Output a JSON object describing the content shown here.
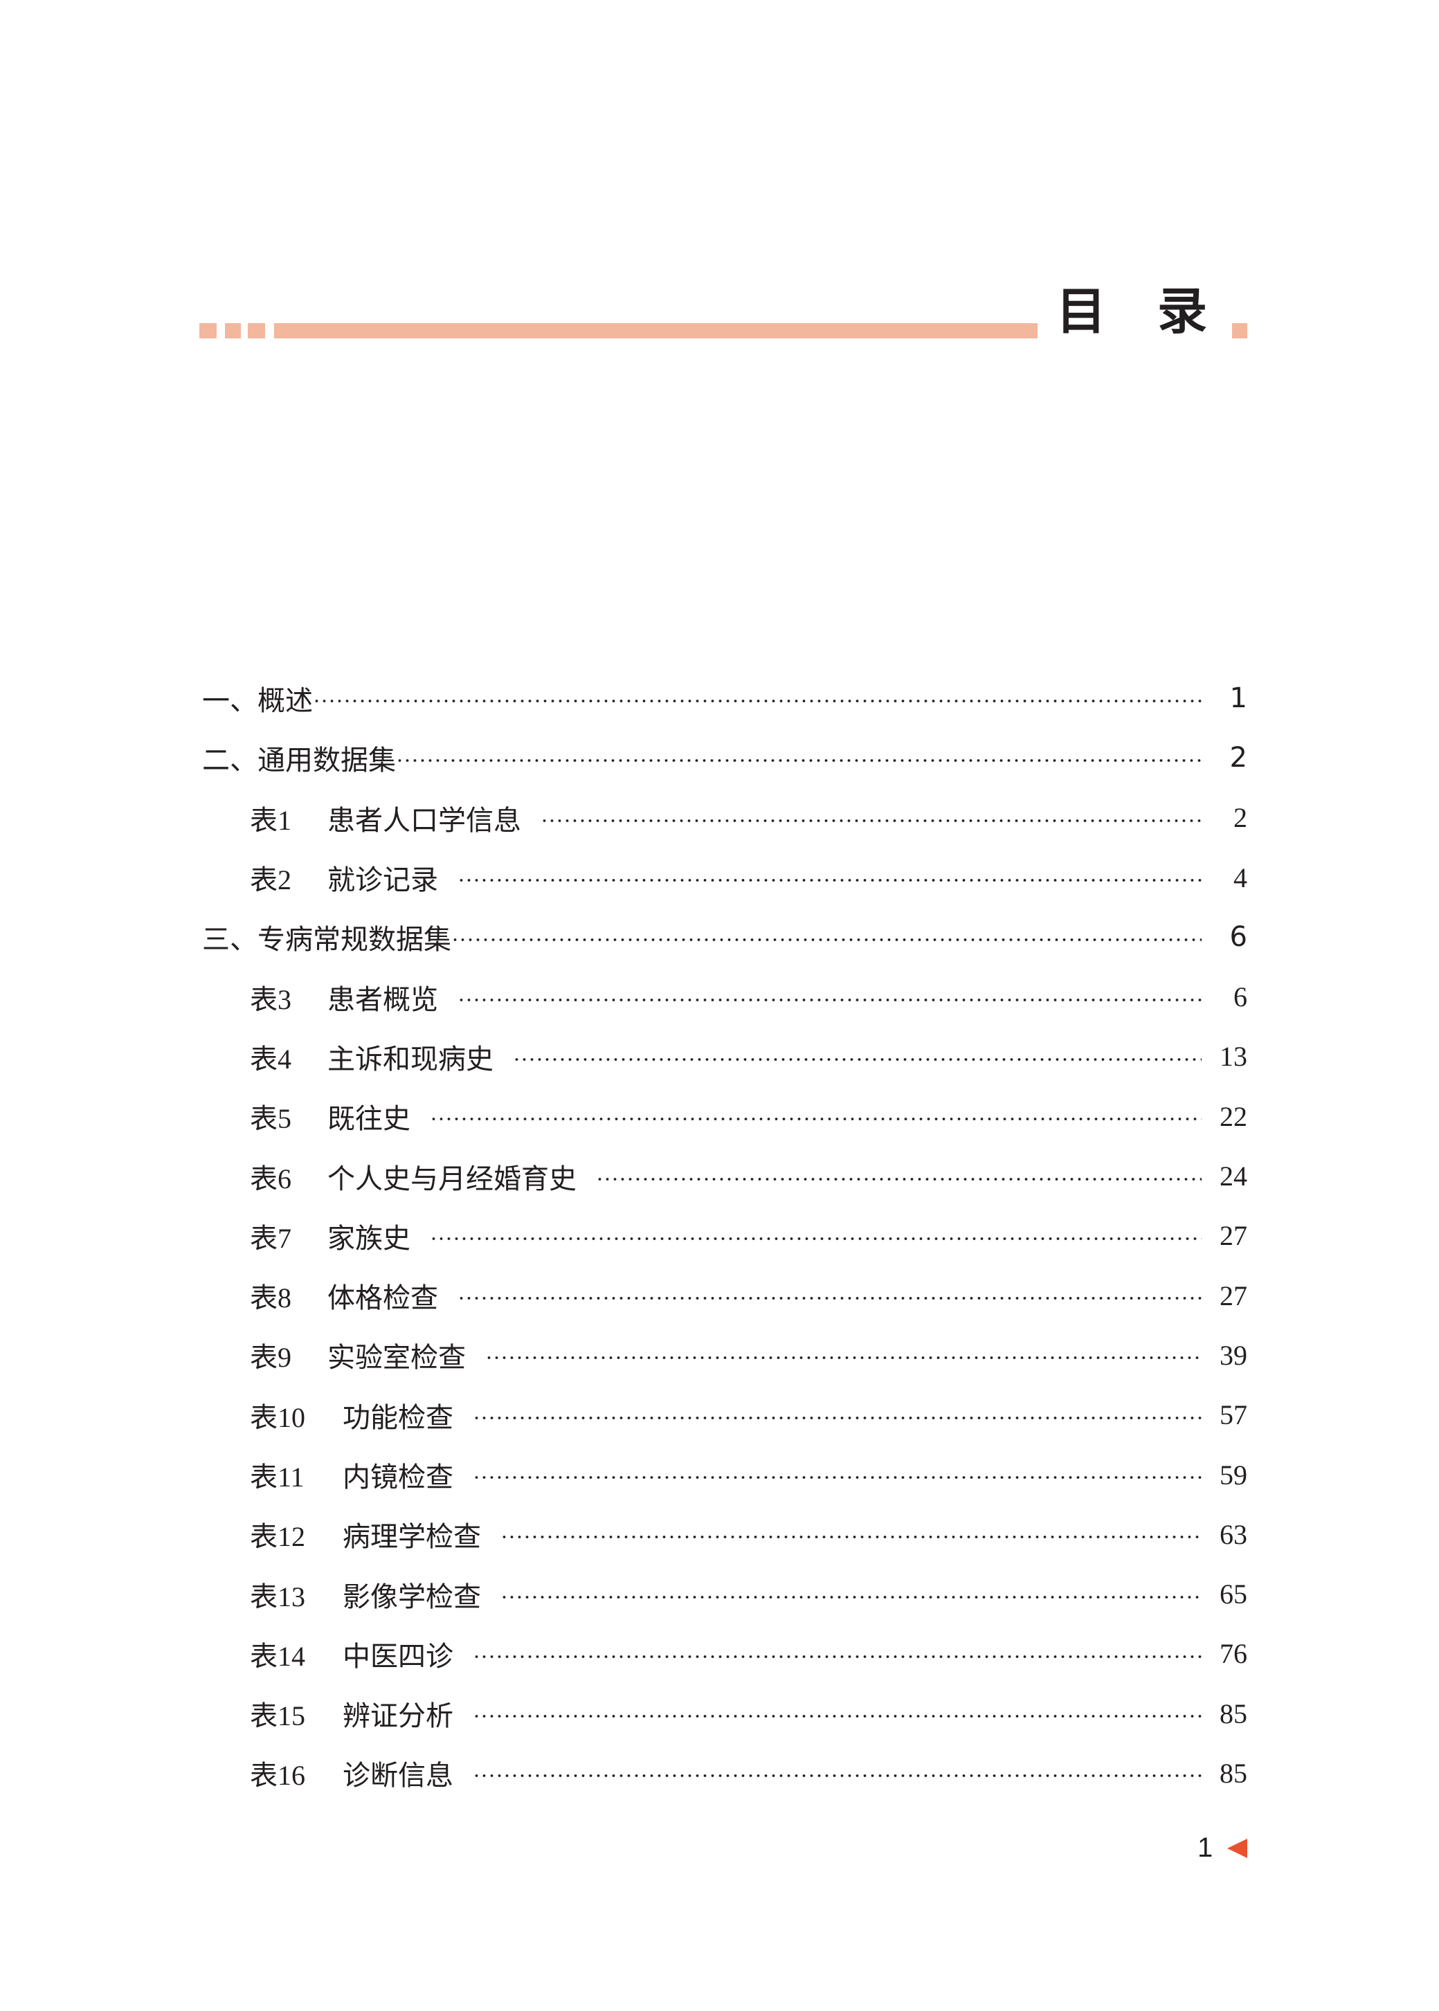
{
  "header": {
    "title_char1": "目",
    "title_char2": "录",
    "accent_color": "#f2b79d"
  },
  "toc": [
    {
      "level": 1,
      "label": "一、概述",
      "page": "1"
    },
    {
      "level": 1,
      "label": "二、通用数据集",
      "page": "2"
    },
    {
      "level": 2,
      "num": "表1",
      "label": "患者人口学信息",
      "page": "2"
    },
    {
      "level": 2,
      "num": "表2",
      "label": "就诊记录",
      "page": "4"
    },
    {
      "level": 1,
      "label": "三、专病常规数据集",
      "page": "6"
    },
    {
      "level": 2,
      "num": "表3",
      "label": "患者概览",
      "page": "6"
    },
    {
      "level": 2,
      "num": "表4",
      "label": "主诉和现病史",
      "page": "13"
    },
    {
      "level": 2,
      "num": "表5",
      "label": "既往史",
      "page": "22"
    },
    {
      "level": 2,
      "num": "表6",
      "label": "个人史与月经婚育史",
      "page": "24"
    },
    {
      "level": 2,
      "num": "表7",
      "label": "家族史",
      "page": "27"
    },
    {
      "level": 2,
      "num": "表8",
      "label": "体格检查",
      "page": "27"
    },
    {
      "level": 2,
      "num": "表9",
      "label": "实验室检查",
      "page": "39"
    },
    {
      "level": 2,
      "num": "表10",
      "label": "功能检查",
      "page": "57"
    },
    {
      "level": 2,
      "num": "表11",
      "label": "内镜检查",
      "page": "59"
    },
    {
      "level": 2,
      "num": "表12",
      "label": "病理学检查",
      "page": "63"
    },
    {
      "level": 2,
      "num": "表13",
      "label": "影像学检查",
      "page": "65"
    },
    {
      "level": 2,
      "num": "表14",
      "label": "中医四诊",
      "page": "76"
    },
    {
      "level": 2,
      "num": "表15",
      "label": "辨证分析",
      "page": "85"
    },
    {
      "level": 2,
      "num": "表16",
      "label": "诊断信息",
      "page": "85"
    }
  ],
  "footer": {
    "page_number": "1",
    "marker_color": "#e8532e",
    "marker_icon": "triangle-left-icon"
  }
}
